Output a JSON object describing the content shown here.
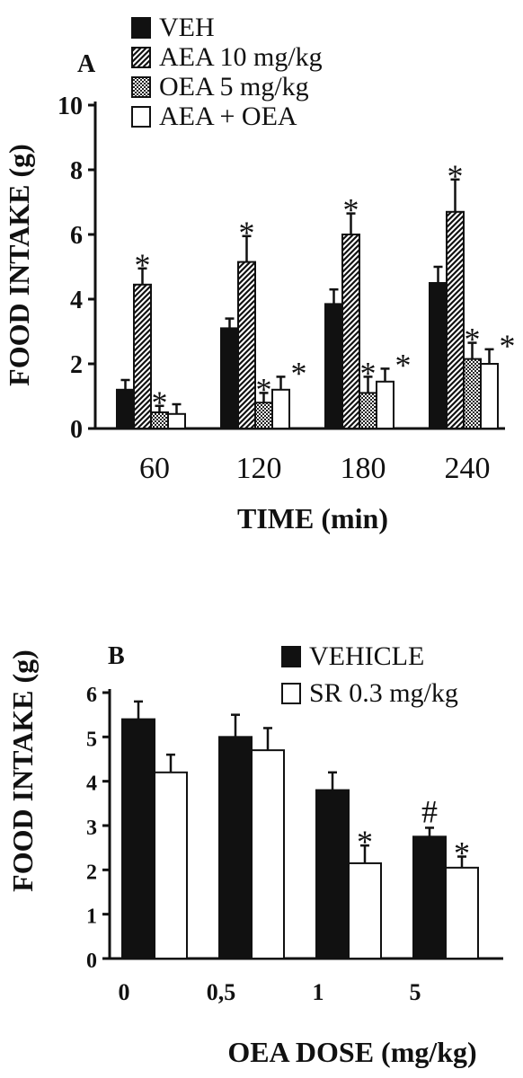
{
  "chart_data": [
    {
      "type": "bar",
      "panel_label": "A",
      "xlabel": "TIME (min)",
      "ylabel": "FOOD INTAKE (g)",
      "ylim": [
        0,
        10
      ],
      "yticks": [
        0,
        2,
        4,
        6,
        8,
        10
      ],
      "categories": [
        "60",
        "120",
        "180",
        "240"
      ],
      "legend_position": "top-left",
      "series": [
        {
          "name": "VEH",
          "pattern": "solid",
          "values": [
            1.2,
            3.1,
            3.85,
            4.5
          ],
          "errors": [
            0.3,
            0.3,
            0.45,
            0.5
          ],
          "annotations": [
            "",
            "",
            "",
            ""
          ]
        },
        {
          "name": "AEA 10 mg/kg",
          "pattern": "hatch",
          "values": [
            4.45,
            5.15,
            6.0,
            6.7
          ],
          "errors": [
            0.5,
            0.8,
            0.65,
            1.0
          ],
          "annotations": [
            "*",
            "*",
            "*",
            "*"
          ]
        },
        {
          "name": "OEA 5 mg/kg",
          "pattern": "dots",
          "values": [
            0.5,
            0.8,
            1.1,
            2.15
          ],
          "errors": [
            0.2,
            0.3,
            0.5,
            0.5
          ],
          "annotations": [
            "*",
            "*",
            "*",
            "*"
          ]
        },
        {
          "name": "AEA + OEA",
          "pattern": "open",
          "values": [
            0.45,
            1.2,
            1.45,
            2.0
          ],
          "errors": [
            0.3,
            0.4,
            0.4,
            0.45
          ],
          "annotations": [
            "",
            "*",
            "*",
            "*"
          ]
        }
      ]
    },
    {
      "type": "bar",
      "panel_label": "B",
      "xlabel": "OEA DOSE (mg/kg)",
      "ylabel": "FOOD INTAKE (g)",
      "ylim": [
        0,
        6
      ],
      "yticks": [
        0,
        1,
        2,
        3,
        4,
        5,
        6
      ],
      "categories": [
        "0",
        "0,5",
        "1",
        "5"
      ],
      "legend_position": "top-right",
      "series": [
        {
          "name": "VEHICLE",
          "pattern": "solid",
          "values": [
            5.4,
            5.0,
            3.8,
            2.75
          ],
          "errors": [
            0.4,
            0.5,
            0.4,
            0.2
          ],
          "annotations": [
            "",
            "",
            "",
            "#"
          ]
        },
        {
          "name": "SR 0.3 mg/kg",
          "pattern": "open",
          "values": [
            4.2,
            4.7,
            2.15,
            2.05
          ],
          "errors": [
            0.4,
            0.5,
            0.4,
            0.25
          ],
          "annotations": [
            "",
            "",
            "*",
            "*"
          ]
        }
      ]
    }
  ]
}
